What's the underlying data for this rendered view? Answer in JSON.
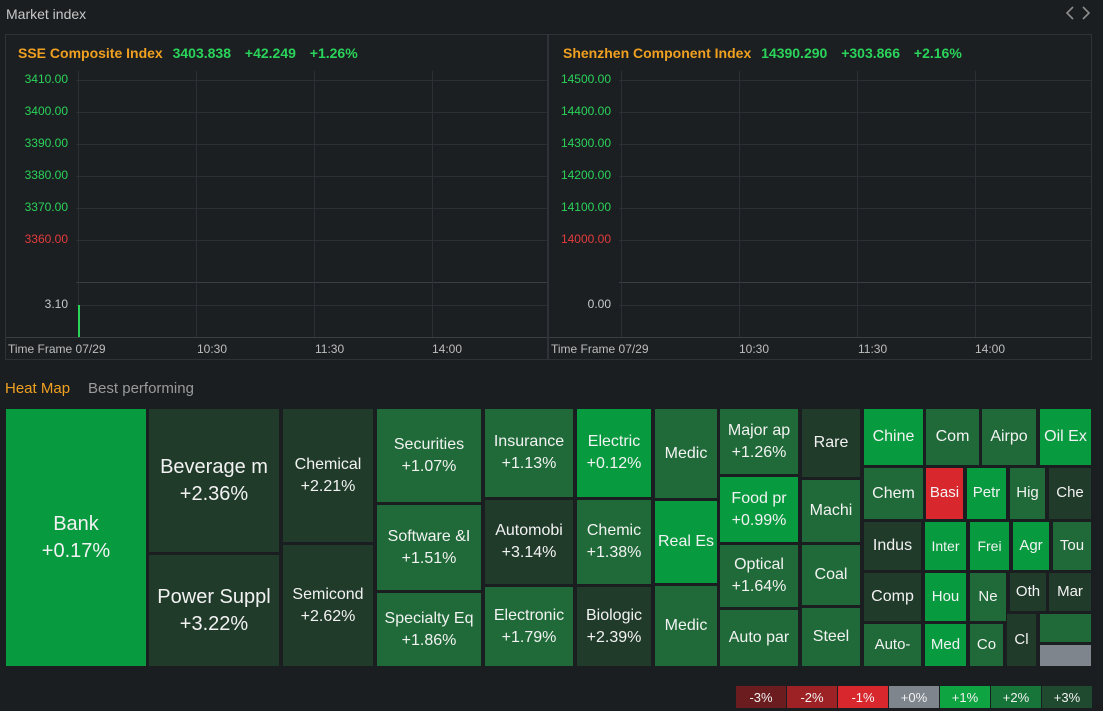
{
  "header": {
    "title": "Market index",
    "prev_icon": "chevron-left",
    "next_icon": "chevron-right"
  },
  "panels": [
    {
      "name": "SSE Composite Index",
      "value": "3403.838",
      "change": "+42.249",
      "pct": "+1.26%",
      "y_labels": [
        "3410.00",
        "3400.00",
        "3390.00",
        "3380.00",
        "3370.00",
        "3360.00"
      ],
      "vol_label": "3.10",
      "timeframe": "Time Frame 07/29",
      "x_labels": [
        "10:30",
        "11:30",
        "14:00"
      ]
    },
    {
      "name": "Shenzhen Component Index",
      "value": "14390.290",
      "change": "+303.866",
      "pct": "+2.16%",
      "y_labels": [
        "14500.00",
        "14400.00",
        "14300.00",
        "14200.00",
        "14100.00",
        "14000.00"
      ],
      "vol_label": "0.00",
      "timeframe": "Time Frame 07/29",
      "x_labels": [
        "10:30",
        "11:30",
        "14:00"
      ]
    }
  ],
  "tabs": {
    "heatmap": "Heat Map",
    "best": "Best performing"
  },
  "colors": {
    "up1": "#2a5a3a",
    "up2": "#1f8a3f",
    "up3": "#079a3f",
    "down": "#d8282e",
    "flat": "#7e858c",
    "dark": "#213b2b"
  },
  "heatmap": [
    {
      "name": "Bank",
      "pct": "+0.17%"
    },
    {
      "name": "Beverage m",
      "pct": "+2.36%"
    },
    {
      "name": "Power Suppl",
      "pct": "+3.22%"
    },
    {
      "name": "Chemical",
      "pct": "+2.21%"
    },
    {
      "name": "Semicond",
      "pct": "+2.62%"
    },
    {
      "name": "Securities",
      "pct": "+1.07%"
    },
    {
      "name": "Software &I",
      "pct": "+1.51%"
    },
    {
      "name": "Specialty Eq",
      "pct": "+1.86%"
    },
    {
      "name": "Insurance",
      "pct": "+1.13%"
    },
    {
      "name": "Automobi",
      "pct": "+3.14%"
    },
    {
      "name": "Electronic",
      "pct": "+1.79%"
    },
    {
      "name": "Electric",
      "pct": "+0.12%"
    },
    {
      "name": "Chemic",
      "pct": "+1.38%"
    },
    {
      "name": "Biologic",
      "pct": "+2.39%"
    },
    {
      "name": "Medic",
      "pct": ""
    },
    {
      "name": "Real Es",
      "pct": ""
    },
    {
      "name": "Medic",
      "pct": ""
    },
    {
      "name": "Major ap",
      "pct": "+1.26%"
    },
    {
      "name": "Food pr",
      "pct": "+0.99%"
    },
    {
      "name": "Optical",
      "pct": "+1.64%"
    },
    {
      "name": "Auto par",
      "pct": ""
    },
    {
      "name": "Rare",
      "pct": ""
    },
    {
      "name": "Machi",
      "pct": ""
    },
    {
      "name": "Coal",
      "pct": ""
    },
    {
      "name": "Steel",
      "pct": ""
    },
    {
      "name": "Chine",
      "pct": ""
    },
    {
      "name": "Com",
      "pct": ""
    },
    {
      "name": "Airpo",
      "pct": ""
    },
    {
      "name": "Oil Ex",
      "pct": ""
    },
    {
      "name": "Chem",
      "pct": ""
    },
    {
      "name": "Basi",
      "pct": ""
    },
    {
      "name": "Petr",
      "pct": ""
    },
    {
      "name": "Hig",
      "pct": ""
    },
    {
      "name": "Che",
      "pct": ""
    },
    {
      "name": "Indus",
      "pct": ""
    },
    {
      "name": "Inter",
      "pct": ""
    },
    {
      "name": "Frei",
      "pct": ""
    },
    {
      "name": "Agr",
      "pct": ""
    },
    {
      "name": "Tou",
      "pct": ""
    },
    {
      "name": "Comp",
      "pct": ""
    },
    {
      "name": "Hou",
      "pct": ""
    },
    {
      "name": "Ne",
      "pct": ""
    },
    {
      "name": "Oth",
      "pct": ""
    },
    {
      "name": "Mar",
      "pct": ""
    },
    {
      "name": "Auto-",
      "pct": ""
    },
    {
      "name": "Med",
      "pct": ""
    },
    {
      "name": "Co",
      "pct": ""
    },
    {
      "name": "Cl",
      "pct": ""
    },
    {
      "name": "",
      "pct": ""
    },
    {
      "name": "",
      "pct": ""
    }
  ],
  "legend": [
    "-3%",
    "-2%",
    "-1%",
    "+0%",
    "+1%",
    "+2%",
    "+3%"
  ]
}
